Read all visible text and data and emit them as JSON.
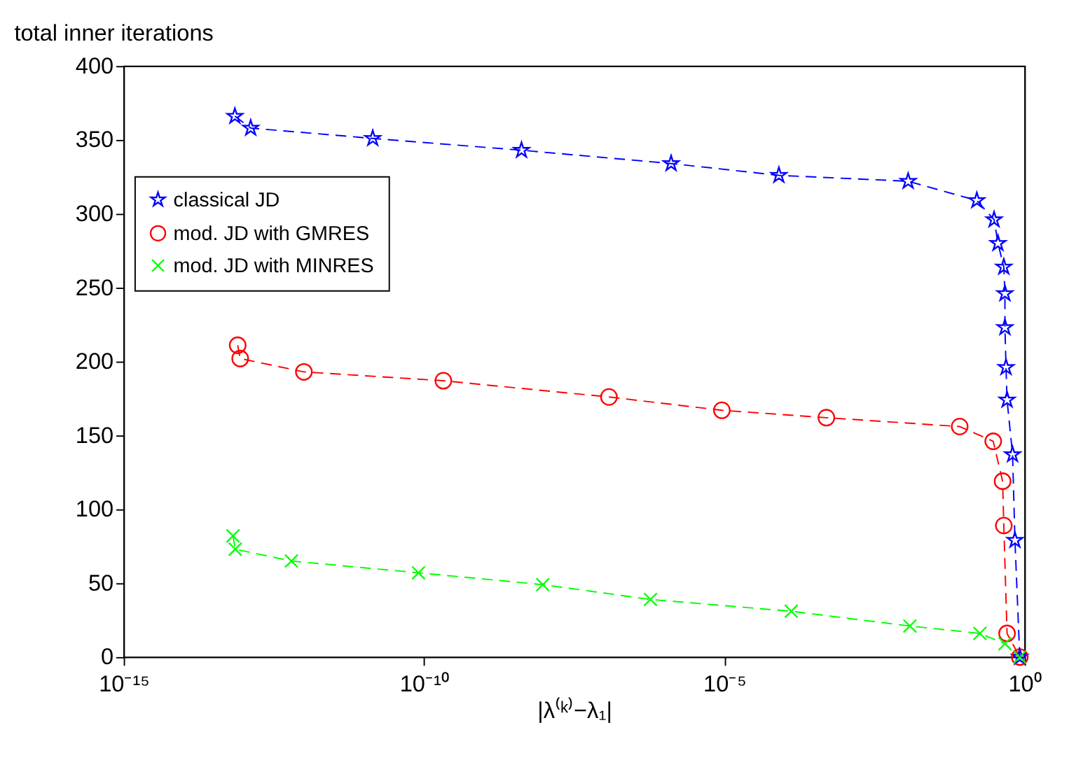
{
  "chart_data": {
    "type": "line",
    "title": "total inner iterations",
    "xlabel": "|λ⁽ᵏ⁾−λ₁|",
    "log": "x",
    "grid": false,
    "legend": "top left",
    "line_style": "dashed",
    "xlim": [
      1e-15,
      1
    ],
    "xticks": [
      {
        "value": 1e-15,
        "label": "10⁻¹⁵"
      },
      {
        "value": 1e-10,
        "label": "10⁻¹⁰"
      },
      {
        "value": 1e-05,
        "label": "10⁻⁵"
      },
      {
        "value": 1,
        "label": "10⁰"
      }
    ],
    "ylim": [
      0,
      400
    ],
    "yticks": [
      0,
      50,
      100,
      150,
      200,
      250,
      300,
      350,
      400
    ],
    "series": [
      {
        "name": "classical JD",
        "color": "#0000ff",
        "marker": "star",
        "x": [
          7.1e-14,
          1.3e-13,
          1.4e-11,
          4.2e-09,
          1.3e-06,
          8.1e-05,
          0.0115,
          0.16,
          0.31,
          0.36,
          0.45,
          0.47,
          0.47,
          0.49,
          0.51,
          0.63,
          0.69,
          0.83
        ],
        "values": [
          366,
          358,
          351,
          343,
          334,
          326,
          322,
          309,
          296,
          280,
          264,
          246,
          223,
          196,
          174,
          137,
          79,
          0
        ]
      },
      {
        "name": "mod. JD with GMRES",
        "color": "#ff0000",
        "marker": "circle",
        "x": [
          7.9e-14,
          8.7e-14,
          1e-12,
          2.1e-10,
          1.2e-07,
          9.1e-06,
          0.0005,
          0.083,
          0.3,
          0.43,
          0.45,
          0.51,
          0.83
        ],
        "values": [
          211,
          202,
          193,
          187,
          176,
          167,
          162,
          156,
          146,
          119,
          89,
          16,
          0
        ]
      },
      {
        "name": "mod. JD with MINRES",
        "color": "#00ff00",
        "marker": "cross",
        "x": [
          6.6e-14,
          7.2e-14,
          6.2e-13,
          8.1e-11,
          9.5e-09,
          5.9e-07,
          0.00013,
          0.0123,
          0.18,
          0.47,
          0.83
        ],
        "values": [
          82,
          73,
          65,
          57,
          49,
          39,
          31,
          21,
          16,
          9,
          0
        ]
      }
    ]
  }
}
